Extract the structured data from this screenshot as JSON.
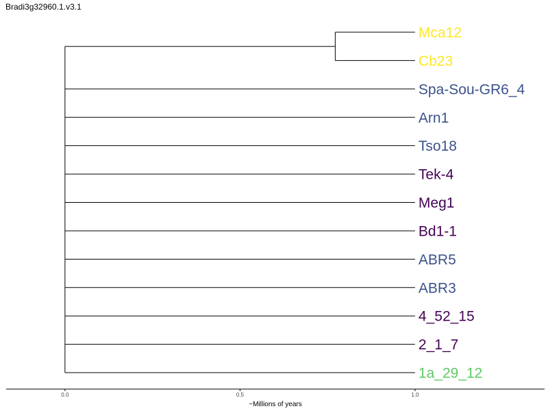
{
  "chart_data": {
    "type": "dendrogram",
    "title": "Bradi3g32960.1.v3.1",
    "xlabel": "~Millions of years",
    "xlim": [
      -0.168,
      1.37
    ],
    "x_ticks": [
      0.0,
      0.5,
      1.0
    ],
    "x_tick_labels": [
      "0.0",
      "0.5",
      "1.0"
    ],
    "grid": false,
    "legend": "none",
    "tips": [
      {
        "label": "Mca12",
        "x": 1.0,
        "color": "#fde725"
      },
      {
        "label": "Cb23",
        "x": 1.0,
        "color": "#fde725"
      },
      {
        "label": "Spa-Sou-GR6_4",
        "x": 1.0,
        "color": "#3b528b"
      },
      {
        "label": "Arn1",
        "x": 1.0,
        "color": "#3b528b"
      },
      {
        "label": "Tso18",
        "x": 1.0,
        "color": "#3b528b"
      },
      {
        "label": "Tek-4",
        "x": 1.0,
        "color": "#440154"
      },
      {
        "label": "Meg1",
        "x": 1.0,
        "color": "#440154"
      },
      {
        "label": "Bd1-1",
        "x": 1.0,
        "color": "#440154"
      },
      {
        "label": "ABR5",
        "x": 1.0,
        "color": "#3b528b"
      },
      {
        "label": "ABR3",
        "x": 1.0,
        "color": "#3b528b"
      },
      {
        "label": "4_52_15",
        "x": 1.0,
        "color": "#440154"
      },
      {
        "label": "2_1_7",
        "x": 1.0,
        "color": "#440154"
      },
      {
        "label": "1a_29_12",
        "x": 1.0,
        "color": "#5ec962"
      }
    ],
    "clades": [
      {
        "members": [
          "Mca12",
          "Cb23"
        ],
        "x": 0.772
      }
    ],
    "root_x": 0.0
  }
}
